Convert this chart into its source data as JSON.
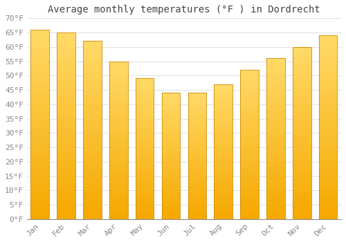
{
  "title": "Average monthly temperatures (°F ) in Dordrecht",
  "months": [
    "Jan",
    "Feb",
    "Mar",
    "Apr",
    "May",
    "Jun",
    "Jul",
    "Aug",
    "Sep",
    "Oct",
    "Nov",
    "Dec"
  ],
  "values": [
    66,
    65,
    62,
    55,
    49,
    44,
    44,
    47,
    52,
    56,
    60,
    64
  ],
  "bar_color_bottom": "#F5A800",
  "bar_color_top": "#FFD966",
  "bar_edge_color": "#CC8800",
  "ylim": [
    0,
    70
  ],
  "ytick_step": 5,
  "ylabel_suffix": "°F",
  "background_color": "#FFFFFF",
  "grid_color": "#E0E0E0",
  "title_fontsize": 10,
  "tick_fontsize": 8,
  "tick_color": "#888888",
  "bar_width": 0.7,
  "n_gradient_steps": 50
}
